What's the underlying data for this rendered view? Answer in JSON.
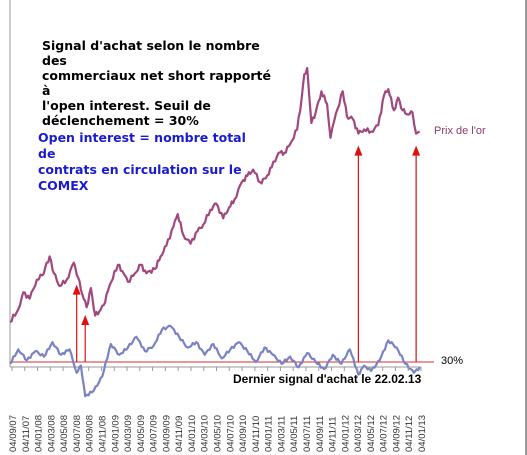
{
  "chart_data": {
    "type": "line",
    "title": "",
    "xlabel": "",
    "ylabel": "",
    "x_tick_labels": [
      "04/09/07",
      "04/11/07",
      "04/01/08",
      "04/03/08",
      "04/05/08",
      "04/07/08",
      "04/09/08",
      "04/11/08",
      "04/01/09",
      "04/03/09",
      "04/05/09",
      "04/07/09",
      "04/09/09",
      "04/11/09",
      "04/01/10",
      "04/03/10",
      "04/05/10",
      "04/07/10",
      "04/09/10",
      "04/11/10",
      "04/01/11",
      "04/03/11",
      "04/05/11",
      "04/07/11",
      "04/09/11",
      "04/11/11",
      "04/01/12",
      "04/03/12",
      "04/05/12",
      "04/07/12",
      "04/09/12",
      "04/11/12",
      "04/01/13"
    ],
    "x_range": [
      "2007-09-04",
      "2013-03-18"
    ],
    "series": [
      {
        "name": "Prix de l'or",
        "color": "#a0487e",
        "points": [
          [
            "2007-09-04",
            690
          ],
          [
            "2007-10-15",
            750
          ],
          [
            "2007-11-08",
            830
          ],
          [
            "2007-12-10",
            800
          ],
          [
            "2008-01-14",
            890
          ],
          [
            "2008-02-10",
            910
          ],
          [
            "2008-03-17",
            1000
          ],
          [
            "2008-04-07",
            920
          ],
          [
            "2008-05-05",
            860
          ],
          [
            "2008-06-09",
            890
          ],
          [
            "2008-07-14",
            970
          ],
          [
            "2008-08-04",
            900
          ],
          [
            "2008-08-25",
            820
          ],
          [
            "2008-09-15",
            760
          ],
          [
            "2008-10-06",
            850
          ],
          [
            "2008-10-27",
            720
          ],
          [
            "2008-11-17",
            740
          ],
          [
            "2008-12-08",
            770
          ],
          [
            "2009-01-05",
            860
          ],
          [
            "2009-02-16",
            960
          ],
          [
            "2009-03-16",
            920
          ],
          [
            "2009-04-06",
            880
          ],
          [
            "2009-05-11",
            920
          ],
          [
            "2009-06-08",
            960
          ],
          [
            "2009-07-06",
            920
          ],
          [
            "2009-08-17",
            940
          ],
          [
            "2009-09-14",
            1000
          ],
          [
            "2009-10-12",
            1050
          ],
          [
            "2009-11-16",
            1140
          ],
          [
            "2009-12-07",
            1200
          ],
          [
            "2010-01-04",
            1100
          ],
          [
            "2010-02-08",
            1060
          ],
          [
            "2010-03-15",
            1120
          ],
          [
            "2010-04-12",
            1150
          ],
          [
            "2010-05-17",
            1220
          ],
          [
            "2010-06-14",
            1250
          ],
          [
            "2010-07-19",
            1180
          ],
          [
            "2010-08-16",
            1230
          ],
          [
            "2010-09-13",
            1270
          ],
          [
            "2010-10-18",
            1350
          ],
          [
            "2010-11-15",
            1380
          ],
          [
            "2010-12-13",
            1410
          ],
          [
            "2011-01-17",
            1350
          ],
          [
            "2011-02-14",
            1370
          ],
          [
            "2011-03-14",
            1420
          ],
          [
            "2011-04-18",
            1490
          ],
          [
            "2011-05-16",
            1490
          ],
          [
            "2011-06-13",
            1530
          ],
          [
            "2011-07-18",
            1600
          ],
          [
            "2011-08-08",
            1740
          ],
          [
            "2011-08-22",
            1860
          ],
          [
            "2011-09-05",
            1890
          ],
          [
            "2011-09-26",
            1630
          ],
          [
            "2011-10-17",
            1680
          ],
          [
            "2011-11-14",
            1780
          ],
          [
            "2011-12-12",
            1720
          ],
          [
            "2011-12-29",
            1560
          ],
          [
            "2012-01-16",
            1640
          ],
          [
            "2012-02-27",
            1780
          ],
          [
            "2012-03-19",
            1660
          ],
          [
            "2012-04-16",
            1650
          ],
          [
            "2012-05-14",
            1580
          ],
          [
            "2012-06-11",
            1600
          ],
          [
            "2012-07-16",
            1590
          ],
          [
            "2012-08-20",
            1620
          ],
          [
            "2012-09-17",
            1760
          ],
          [
            "2012-10-08",
            1790
          ],
          [
            "2012-11-05",
            1690
          ],
          [
            "2012-11-26",
            1750
          ],
          [
            "2012-12-17",
            1690
          ],
          [
            "2013-01-14",
            1670
          ],
          [
            "2013-02-04",
            1680
          ],
          [
            "2013-02-22",
            1580
          ],
          [
            "2013-03-11",
            1590
          ]
        ]
      },
      {
        "name": "Open interest",
        "color": "#7a82c4",
        "points": [
          [
            "2007-09-04",
            29
          ],
          [
            "2007-10-15",
            37
          ],
          [
            "2007-11-26",
            31
          ],
          [
            "2008-01-07",
            36
          ],
          [
            "2008-02-18",
            33
          ],
          [
            "2008-03-31",
            41
          ],
          [
            "2008-05-12",
            34
          ],
          [
            "2008-06-23",
            37
          ],
          [
            "2008-07-28",
            24
          ],
          [
            "2008-08-18",
            28
          ],
          [
            "2008-09-08",
            11
          ],
          [
            "2008-10-20",
            14
          ],
          [
            "2008-12-01",
            22
          ],
          [
            "2009-01-12",
            40
          ],
          [
            "2009-02-23",
            34
          ],
          [
            "2009-04-06",
            38
          ],
          [
            "2009-05-18",
            44
          ],
          [
            "2009-06-29",
            36
          ],
          [
            "2009-08-10",
            39
          ],
          [
            "2009-09-21",
            48
          ],
          [
            "2009-11-02",
            50
          ],
          [
            "2009-12-14",
            44
          ],
          [
            "2010-01-25",
            38
          ],
          [
            "2010-03-08",
            41
          ],
          [
            "2010-04-19",
            34
          ],
          [
            "2010-05-31",
            40
          ],
          [
            "2010-07-12",
            32
          ],
          [
            "2010-08-23",
            37
          ],
          [
            "2010-10-04",
            41
          ],
          [
            "2010-11-15",
            36
          ],
          [
            "2010-12-27",
            30
          ],
          [
            "2011-02-07",
            38
          ],
          [
            "2011-03-21",
            34
          ],
          [
            "2011-05-02",
            29
          ],
          [
            "2011-06-13",
            33
          ],
          [
            "2011-07-25",
            27
          ],
          [
            "2011-09-05",
            35
          ],
          [
            "2011-10-17",
            30
          ],
          [
            "2011-11-28",
            26
          ],
          [
            "2012-01-09",
            34
          ],
          [
            "2012-02-20",
            29
          ],
          [
            "2012-04-02",
            37
          ],
          [
            "2012-05-14",
            23
          ],
          [
            "2012-06-11",
            28
          ],
          [
            "2012-07-16",
            25
          ],
          [
            "2012-08-27",
            31
          ],
          [
            "2012-10-08",
            42
          ],
          [
            "2012-11-19",
            38
          ],
          [
            "2012-12-31",
            29
          ],
          [
            "2013-02-11",
            24
          ],
          [
            "2013-03-11",
            27
          ]
        ]
      }
    ],
    "threshold": {
      "value": 30,
      "label": "30%",
      "color": "#d03030"
    },
    "buy_signals": [
      "2008-07-28",
      "2008-09-08",
      "2012-05-14",
      "2013-02-22"
    ],
    "grid": false,
    "legend": "none"
  },
  "annotations": {
    "signal_note": "Signal d'achat selon le nombre des\ncommerciaux net short rapporté à\nl'open interest. Seuil de\ndéclenchement = 30%",
    "oi_note": "Open interest = nombre total de\ncontrats en circulation sur le\nCOMEX",
    "gold_label": "Prix de l'or",
    "threshold_label": "30%",
    "last_signal": "Dernier signal d'achat le 22.02.13"
  }
}
